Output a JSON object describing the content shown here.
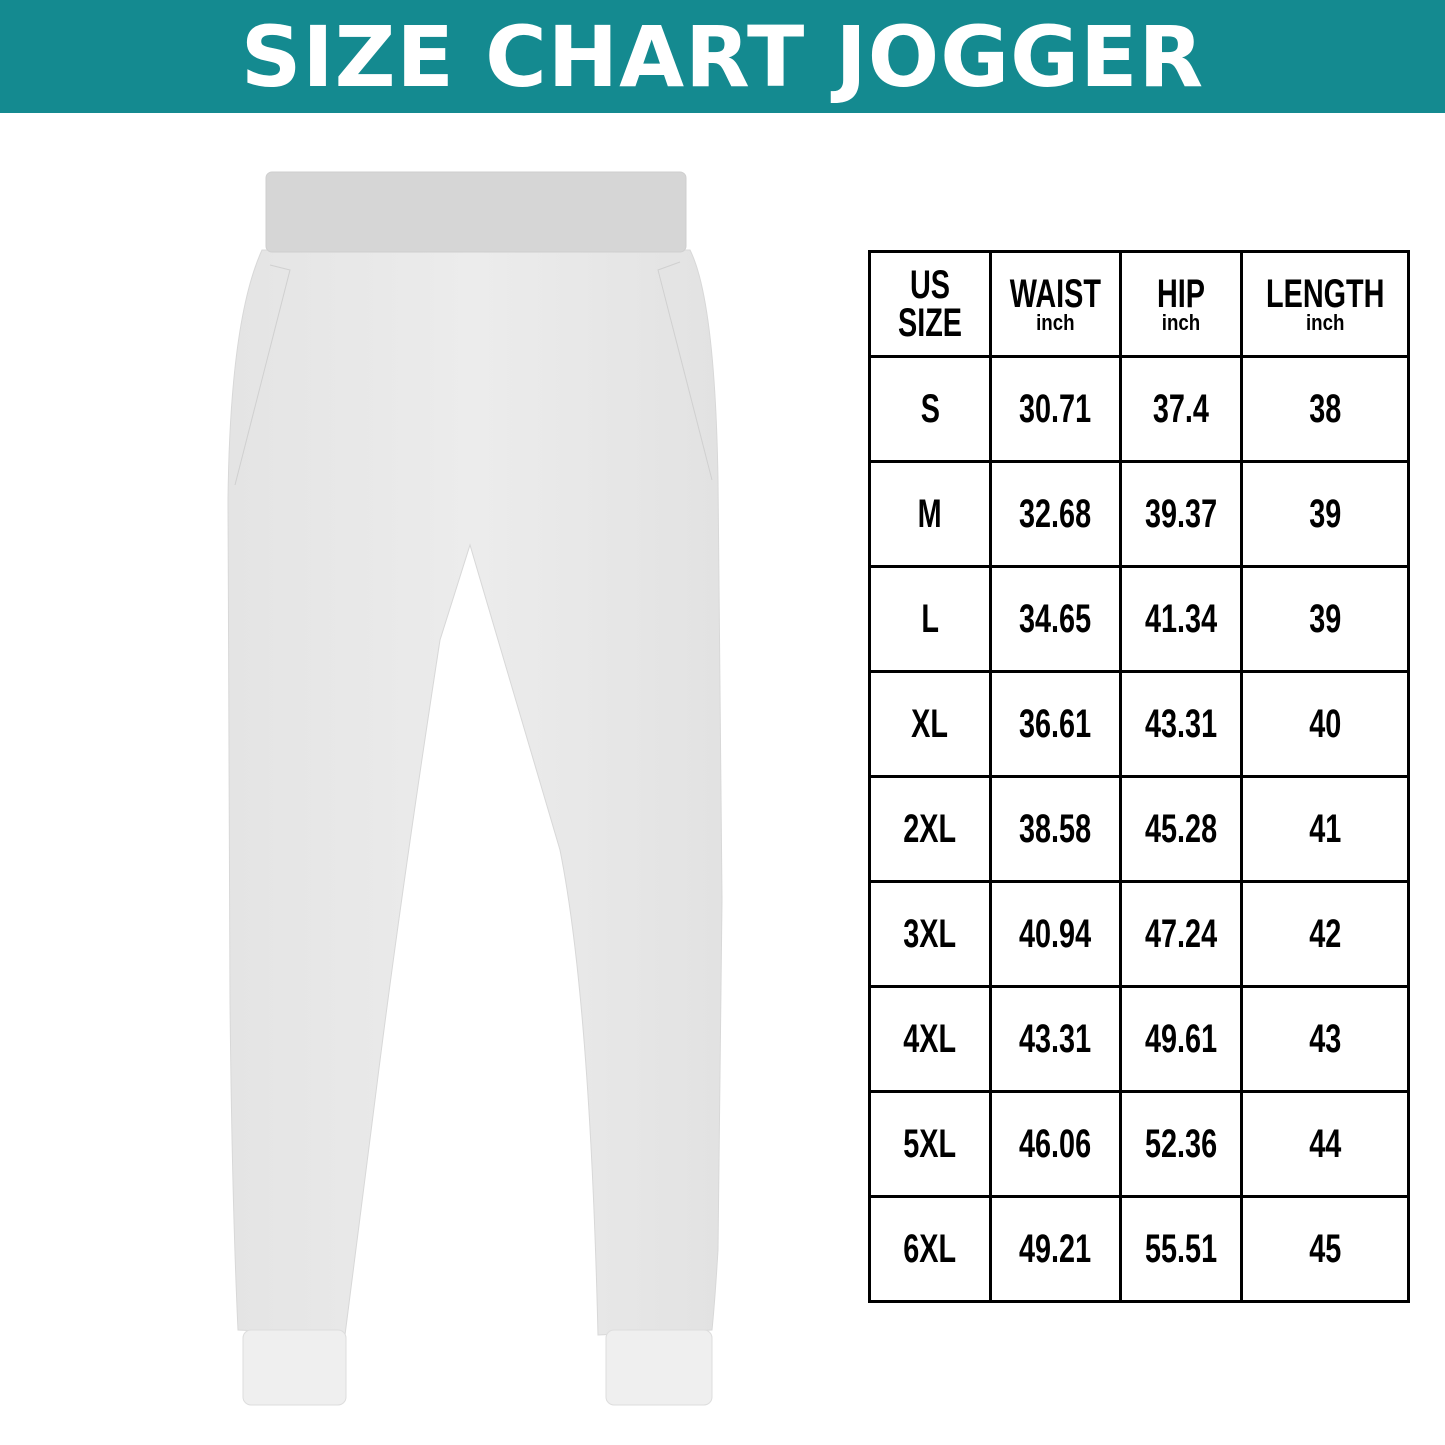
{
  "title": "SIZE CHART JOGGER",
  "colors": {
    "banner": "#148a90",
    "title_text": "#ffffff",
    "grid": "#000000"
  },
  "image": "white-jogger-pants",
  "table": {
    "headers": [
      {
        "label_line1": "US",
        "label_line2": "SIZE"
      },
      {
        "label": "WAIST",
        "unit": "inch"
      },
      {
        "label": "HIP",
        "unit": "inch"
      },
      {
        "label": "LENGTH",
        "unit": "inch"
      }
    ],
    "rows": [
      [
        "S",
        "30.71",
        "37.4",
        "38"
      ],
      [
        "M",
        "32.68",
        "39.37",
        "39"
      ],
      [
        "L",
        "34.65",
        "41.34",
        "39"
      ],
      [
        "XL",
        "36.61",
        "43.31",
        "40"
      ],
      [
        "2XL",
        "38.58",
        "45.28",
        "41"
      ],
      [
        "3XL",
        "40.94",
        "47.24",
        "42"
      ],
      [
        "4XL",
        "43.31",
        "49.61",
        "43"
      ],
      [
        "5XL",
        "46.06",
        "52.36",
        "44"
      ],
      [
        "6XL",
        "49.21",
        "55.51",
        "45"
      ]
    ]
  }
}
